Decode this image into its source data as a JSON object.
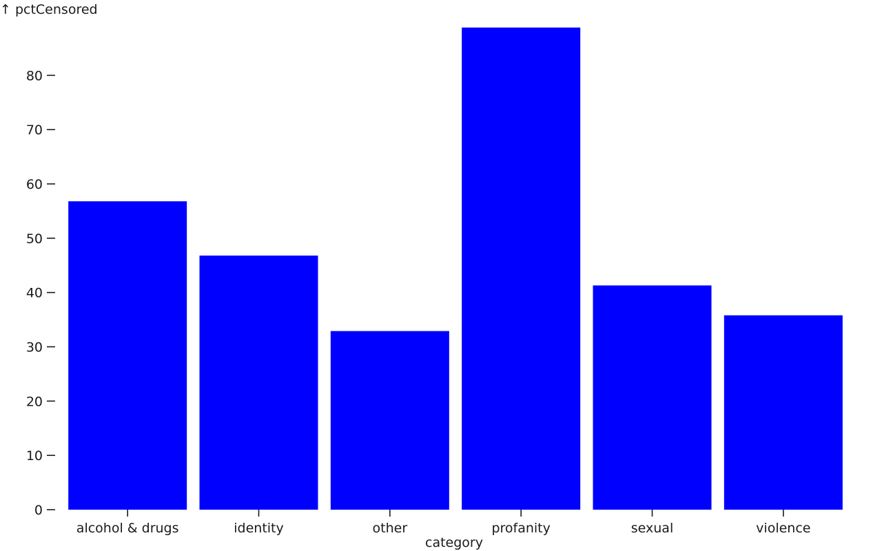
{
  "chart_data": {
    "type": "bar",
    "ylabel": "↑ pctCensored",
    "xlabel": "category",
    "categories": [
      "alcohol & drugs",
      "identity",
      "other",
      "profanity",
      "sexual",
      "violence"
    ],
    "values": [
      56.8,
      46.8,
      32.9,
      88.8,
      41.3,
      35.8
    ],
    "ylim": [
      0,
      88.8
    ],
    "yticks": [
      0,
      10,
      20,
      30,
      40,
      50,
      60,
      70,
      80
    ],
    "grid": false,
    "bar_color": "#0000ff"
  }
}
